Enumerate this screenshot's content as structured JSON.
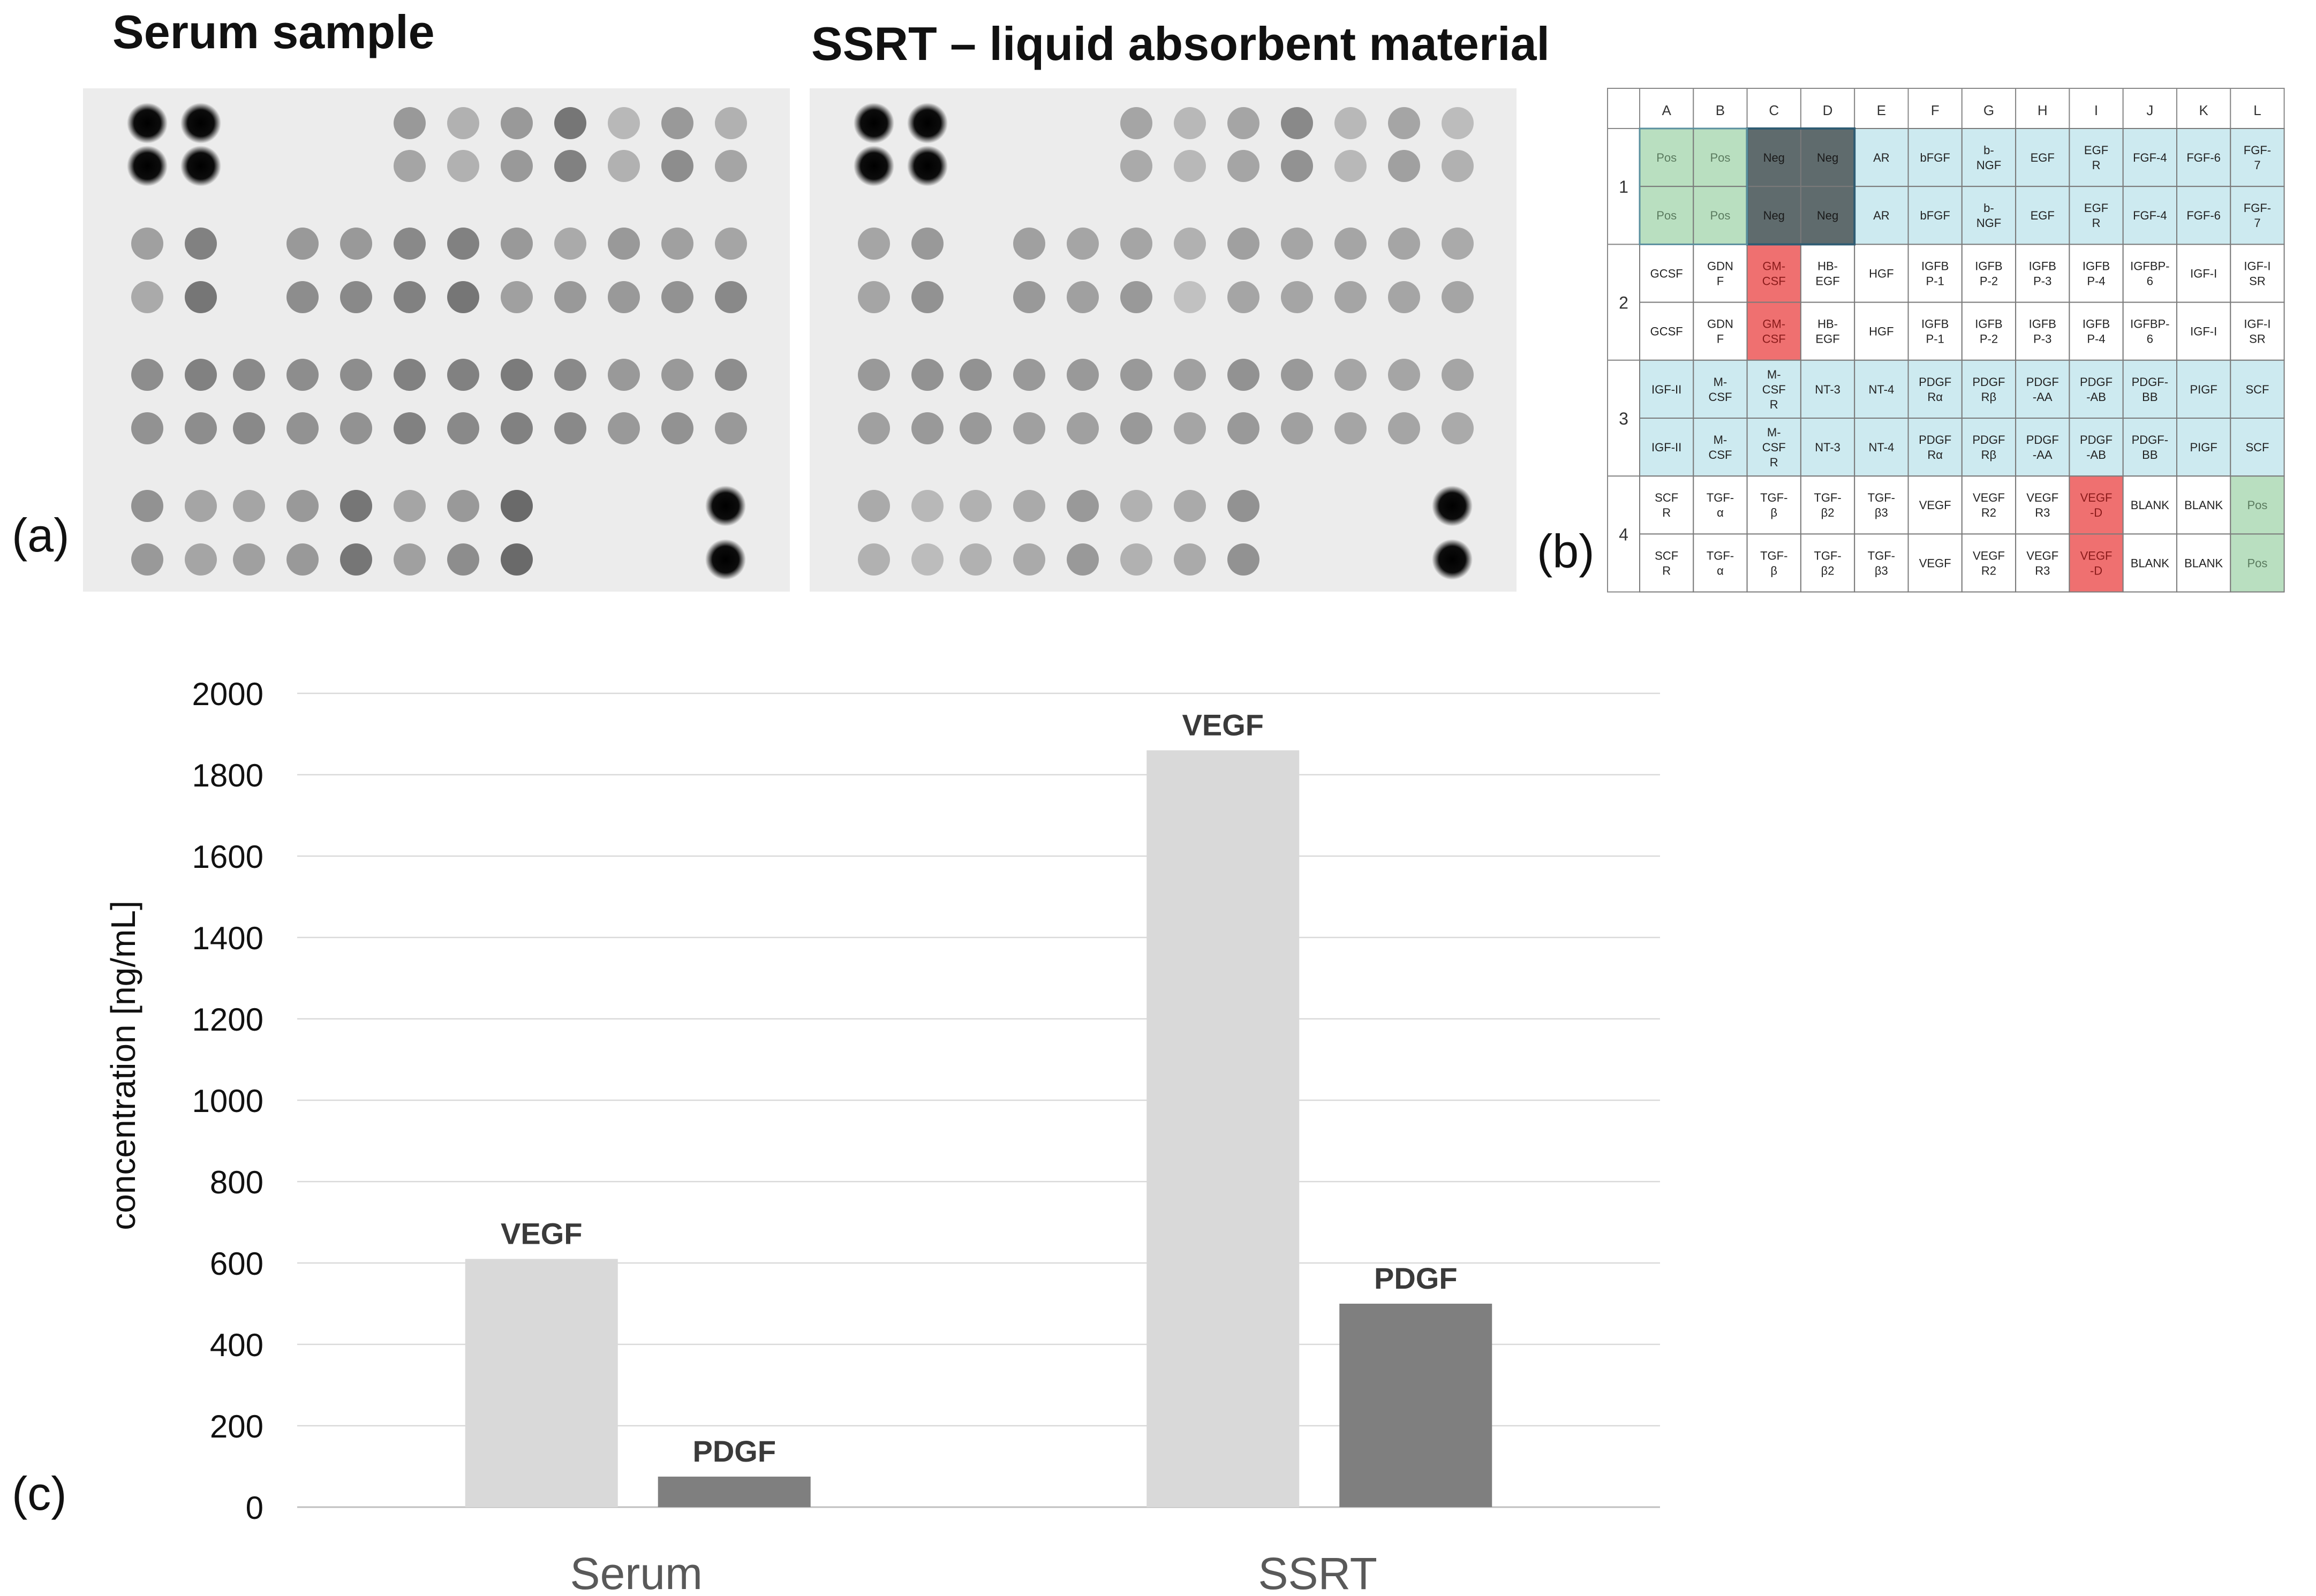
{
  "panel_a": {
    "label": "(a)",
    "serum_title": "Serum sample",
    "ssrt_title": "SSRT – liquid absorbent material"
  },
  "panel_b": {
    "label": "(b)",
    "columns": [
      "A",
      "B",
      "C",
      "D",
      "E",
      "F",
      "G",
      "H",
      "I",
      "J",
      "K",
      "L"
    ],
    "row_groups": [
      "1",
      "2",
      "3",
      "4"
    ],
    "cells": [
      [
        "Pos",
        "Pos",
        "Neg",
        "Neg",
        "AR",
        "bFGF",
        "b-\nNGF",
        "EGF",
        "EGF\nR",
        "FGF-4",
        "FGF-6",
        "FGF-\n7"
      ],
      [
        "Pos",
        "Pos",
        "Neg",
        "Neg",
        "AR",
        "bFGF",
        "b-\nNGF",
        "EGF",
        "EGF\nR",
        "FGF-4",
        "FGF-6",
        "FGF-\n7"
      ],
      [
        "GCSF",
        "GDN\nF",
        "GM-\nCSF",
        "HB-\nEGF",
        "HGF",
        "IGFB\nP-1",
        "IGFB\nP-2",
        "IGFB\nP-3",
        "IGFB\nP-4",
        "IGFBP-\n6",
        "IGF-I",
        "IGF-I\nSR"
      ],
      [
        "GCSF",
        "GDN\nF",
        "GM-\nCSF",
        "HB-\nEGF",
        "HGF",
        "IGFB\nP-1",
        "IGFB\nP-2",
        "IGFB\nP-3",
        "IGFB\nP-4",
        "IGFBP-\n6",
        "IGF-I",
        "IGF-I\nSR"
      ],
      [
        "IGF-II",
        "M-\nCSF",
        "M-\nCSF\nR",
        "NT-3",
        "NT-4",
        "PDGF\nRα",
        "PDGF\nRβ",
        "PDGF\n-AA",
        "PDGF\n-AB",
        "PDGF-\nBB",
        "PIGF",
        "SCF"
      ],
      [
        "IGF-II",
        "M-\nCSF",
        "M-\nCSF\nR",
        "NT-3",
        "NT-4",
        "PDGF\nRα",
        "PDGF\nRβ",
        "PDGF\n-AA",
        "PDGF\n-AB",
        "PDGF-\nBB",
        "PIGF",
        "SCF"
      ],
      [
        "SCF\nR",
        "TGF-\nα",
        "TGF-\nβ",
        "TGF-\nβ2",
        "TGF-\nβ3",
        "VEGF",
        "VEGF\nR2",
        "VEGF\nR3",
        "VEGF\n-D",
        "BLANK",
        "BLANK",
        "Pos"
      ],
      [
        "SCF\nR",
        "TGF-\nα",
        "TGF-\nβ",
        "TGF-\nβ2",
        "TGF-\nβ3",
        "VEGF",
        "VEGF\nR2",
        "VEGF\nR3",
        "VEGF\n-D",
        "BLANK",
        "BLANK",
        "Pos"
      ]
    ],
    "colors": {
      "pos": "#b9dfc0",
      "neg": "#5f6b6d",
      "red": "#ef7070",
      "blue": "#cdeaf0",
      "white": "#ffffff"
    }
  },
  "chart_data": {
    "label": "(c)",
    "type": "bar",
    "categories": [
      "Serum",
      "SSRT"
    ],
    "series": [
      {
        "name": "VEGF",
        "values": [
          610,
          1860
        ],
        "color": "#d9d9d9"
      },
      {
        "name": "PDGF",
        "values": [
          75,
          500
        ],
        "color": "#7f7f7f"
      }
    ],
    "ylabel": "concentration [ng/mL]",
    "ylim": [
      0,
      2000
    ],
    "yticks": [
      0,
      200,
      400,
      600,
      800,
      1000,
      1200,
      1400,
      1600,
      1800,
      2000
    ],
    "grid": true
  }
}
